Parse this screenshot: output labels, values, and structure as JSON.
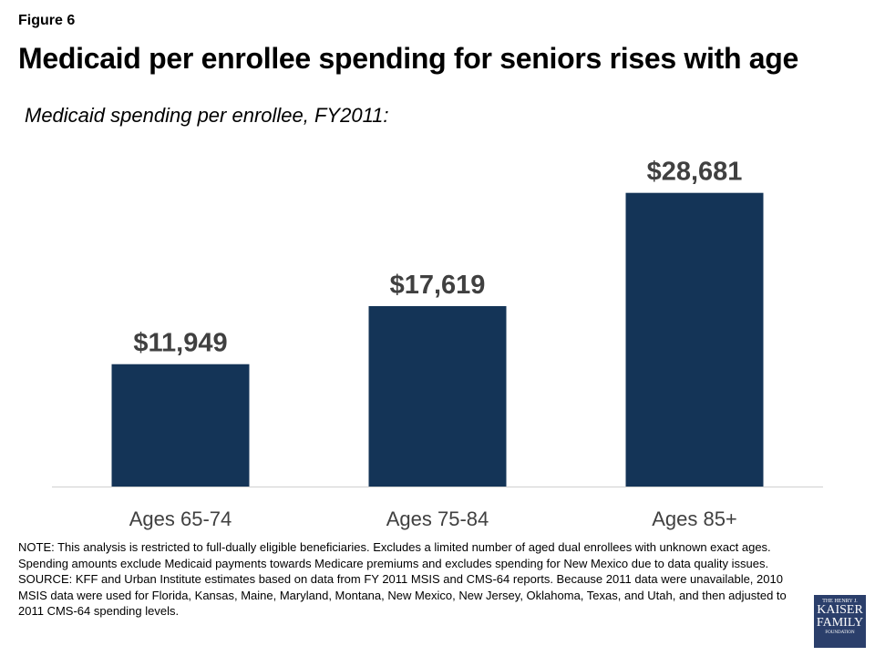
{
  "figure_label": "Figure 6",
  "title": "Medicaid per enrollee spending for seniors rises with age",
  "subtitle": "Medicaid spending per enrollee, FY2011:",
  "chart_data": {
    "type": "bar",
    "title": "Medicaid per enrollee spending for seniors rises with age",
    "subtitle": "Medicaid spending per enrollee, FY2011:",
    "categories": [
      "Ages 65-74",
      "Ages 75-84",
      "Ages 85+"
    ],
    "values": [
      11949,
      17619,
      28681
    ],
    "data_labels": [
      "$11,949",
      "$17,619",
      "$28,681"
    ],
    "ylim": [
      0,
      31500
    ],
    "grid": false,
    "bar_color": "#143457",
    "label_color": "#404040"
  },
  "notes": {
    "note": "NOTE: This analysis is restricted to full-dually eligible beneficiaries. Excludes a limited number of aged dual enrollees with unknown exact ages. Spending amounts exclude Medicaid payments towards Medicare premiums and excludes spending for New Mexico due to data quality issues.",
    "source": "SOURCE: KFF and Urban Institute estimates based on data from FY 2011 MSIS and CMS-64 reports.  Because 2011 data were unavailable, 2010 MSIS data were used for Florida, Kansas, Maine, Maryland, Montana, New Mexico, New Jersey, Oklahoma, Texas, and Utah, and then adjusted to 2011 CMS-64 spending levels."
  },
  "logo": {
    "line1": "THE HENRY J.",
    "line2": "KAISER",
    "line3": "FAMILY",
    "line4": "FOUNDATION"
  }
}
